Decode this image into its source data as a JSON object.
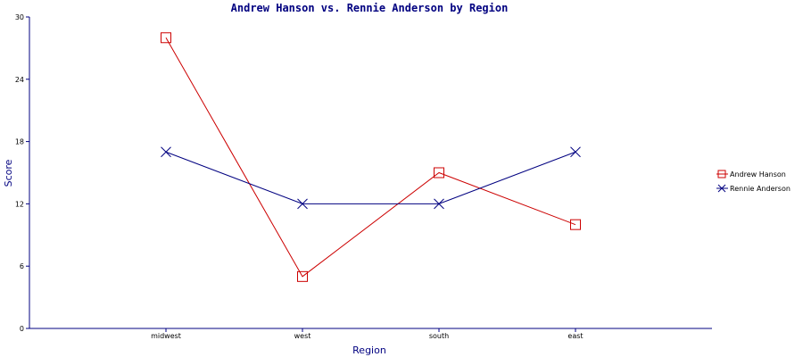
{
  "chart_data": {
    "type": "line",
    "title": "Andrew Hanson vs. Rennie Anderson by Region",
    "xlabel": "Region",
    "ylabel": "Score",
    "categories": [
      "midwest",
      "west",
      "south",
      "east"
    ],
    "ylim": [
      0,
      30
    ],
    "yticks": [
      0,
      6,
      12,
      18,
      24,
      30
    ],
    "grid": false,
    "legend_position": "right",
    "series": [
      {
        "name": "Andrew Hanson",
        "values": [
          28,
          5,
          15,
          10
        ],
        "color": "#cc0000",
        "marker": "square"
      },
      {
        "name": "Rennie Anderson",
        "values": [
          17,
          12,
          12,
          17
        ],
        "color": "#000080",
        "marker": "x"
      }
    ]
  }
}
